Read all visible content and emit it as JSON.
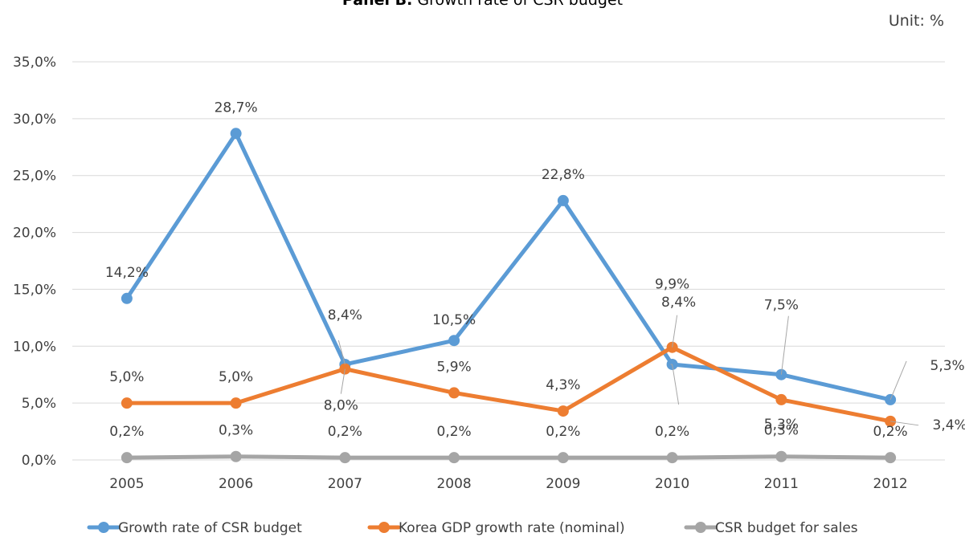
{
  "chart_data": {
    "type": "line",
    "title_bold": "Panel B.",
    "title_rest": "Growth rate of CSR budget",
    "unit_label": "Unit: %",
    "categories": [
      "2005",
      "2006",
      "2007",
      "2008",
      "2009",
      "2010",
      "2011",
      "2012"
    ],
    "ylim": [
      0,
      35
    ],
    "yticks": [
      "0,0%",
      "5,0%",
      "10,0%",
      "15,0%",
      "20,0%",
      "25,0%",
      "30,0%",
      "35,0%"
    ],
    "grid": true,
    "legend_position": "bottom",
    "series": [
      {
        "name": "Growth rate of CSR budget",
        "color": "#5B9BD5",
        "values": [
          14.2,
          28.7,
          8.4,
          10.5,
          22.8,
          8.4,
          7.5,
          5.3
        ],
        "labels": [
          "14,2%",
          "28,7%",
          "8,4%",
          "10,5%",
          "22,8%",
          "8,4%",
          "7,5%",
          "5,3%"
        ]
      },
      {
        "name": "Korea GDP growth rate (nominal)",
        "color": "#ED7D31",
        "values": [
          5.0,
          5.0,
          8.0,
          5.9,
          4.3,
          9.9,
          5.3,
          3.4
        ],
        "labels": [
          "5,0%",
          "5,0%",
          "8,0%",
          "5,9%",
          "4,3%",
          "9,9%",
          "5,3%",
          "3,4%"
        ]
      },
      {
        "name": "CSR budget for sales",
        "color": "#A5A5A5",
        "values": [
          0.2,
          0.3,
          0.2,
          0.2,
          0.2,
          0.2,
          0.3,
          0.2
        ],
        "labels": [
          "0,2%",
          "0,3%",
          "0,2%",
          "0,2%",
          "0,2%",
          "0,2%",
          "0,3%",
          "0,2%"
        ]
      }
    ]
  }
}
